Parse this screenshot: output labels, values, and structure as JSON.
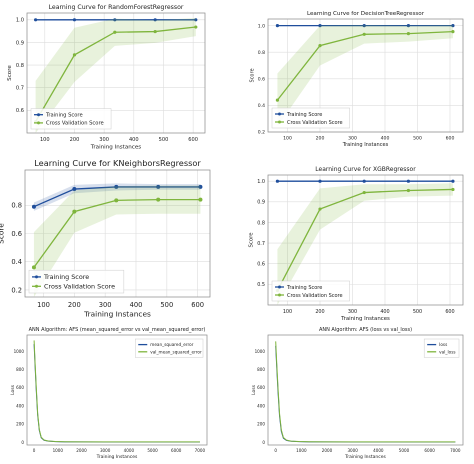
{
  "chart_data": [
    {
      "type": "line",
      "title": "Learning Curve for RandomForestRegressor",
      "xlabel": "Training Instances",
      "ylabel": "Score",
      "x": [
        69,
        200,
        336,
        472,
        609
      ],
      "xticks": [
        100,
        200,
        300,
        400,
        500,
        600
      ],
      "xlim": [
        40,
        640
      ],
      "ylim": [
        0.5,
        1.03
      ],
      "yticks": [
        0.6,
        0.7,
        0.8,
        0.9,
        1.0
      ],
      "ytick_labels": [
        "0.6",
        "0.7",
        "0.8",
        "0.9",
        "1.0"
      ],
      "grid": true,
      "legend_position": "lower-right",
      "series": [
        {
          "name": "Training Score",
          "color": "#1f4e9c",
          "values": [
            1.0,
            1.0,
            1.0,
            1.0,
            1.0
          ],
          "band": [
            0.003,
            0.003,
            0.003,
            0.003,
            0.003
          ]
        },
        {
          "name": "Cross Validation Score",
          "color": "#7fb53d",
          "values": [
            0.55,
            0.845,
            0.945,
            0.948,
            0.968
          ],
          "band": [
            0.18,
            0.12,
            0.06,
            0.05,
            0.04
          ]
        }
      ]
    },
    {
      "type": "line",
      "title": "Learning Curve for DecisionTreeRegressor",
      "xlabel": "Training Instances",
      "ylabel": "Score",
      "x": [
        69,
        200,
        336,
        472,
        609
      ],
      "xticks": [
        100,
        200,
        300,
        400,
        500,
        600
      ],
      "xlim": [
        40,
        640
      ],
      "ylim": [
        0.2,
        1.05
      ],
      "yticks": [
        0.2,
        0.4,
        0.6,
        0.8,
        1.0
      ],
      "ytick_labels": [
        "0.2",
        "0.4",
        "0.6",
        "0.8",
        "1.0"
      ],
      "grid": true,
      "legend_position": "lower-right",
      "series": [
        {
          "name": "Training Score",
          "color": "#1f4e9c",
          "values": [
            1.0,
            1.0,
            1.0,
            1.0,
            1.0
          ],
          "band": [
            0.004,
            0.004,
            0.004,
            0.004,
            0.004
          ]
        },
        {
          "name": "Cross Validation Score",
          "color": "#7fb53d",
          "values": [
            0.44,
            0.85,
            0.935,
            0.94,
            0.955
          ],
          "band": [
            0.2,
            0.15,
            0.07,
            0.06,
            0.05
          ]
        }
      ]
    },
    {
      "type": "line",
      "title": "Learning Curve for KNeighborsRegressor",
      "xlabel": "Training Instances",
      "ylabel": "Score",
      "x": [
        69,
        200,
        336,
        472,
        609
      ],
      "xticks": [
        100,
        200,
        300,
        400,
        500,
        600
      ],
      "xlim": [
        40,
        640
      ],
      "ylim": [
        0.15,
        1.05
      ],
      "yticks": [
        0.2,
        0.4,
        0.6,
        0.8
      ],
      "ytick_labels": [
        "0.2",
        "0.4",
        "0.6",
        "0.8"
      ],
      "grid": true,
      "legend_position": "lower-right",
      "series": [
        {
          "name": "Training Score",
          "color": "#1f4e9c",
          "values": [
            0.79,
            0.915,
            0.93,
            0.93,
            0.93
          ],
          "band": [
            0.03,
            0.03,
            0.025,
            0.02,
            0.02
          ]
        },
        {
          "name": "Cross Validation Score",
          "color": "#7fb53d",
          "values": [
            0.36,
            0.755,
            0.835,
            0.84,
            0.84
          ],
          "band": [
            0.25,
            0.15,
            0.1,
            0.1,
            0.1
          ]
        }
      ]
    },
    {
      "type": "line",
      "title": "Learning Curve for XGBRegressor",
      "xlabel": "Training Instances",
      "ylabel": "Score",
      "x": [
        69,
        200,
        336,
        472,
        609
      ],
      "xticks": [
        100,
        200,
        300,
        400,
        500,
        600
      ],
      "xlim": [
        40,
        640
      ],
      "ylim": [
        0.4,
        1.03
      ],
      "yticks": [
        0.5,
        0.6,
        0.7,
        0.8,
        0.9,
        1.0
      ],
      "ytick_labels": [
        "0.5",
        "0.6",
        "0.7",
        "0.8",
        "0.9",
        "1.0"
      ],
      "grid": true,
      "legend_position": "lower-right",
      "series": [
        {
          "name": "Training Score",
          "color": "#1f4e9c",
          "values": [
            1.0,
            1.0,
            1.0,
            1.0,
            1.0
          ],
          "band": [
            0.003,
            0.003,
            0.003,
            0.003,
            0.003
          ]
        },
        {
          "name": "Cross Validation Score",
          "color": "#7fb53d",
          "values": [
            0.47,
            0.865,
            0.945,
            0.955,
            0.96
          ],
          "band": [
            0.2,
            0.1,
            0.04,
            0.03,
            0.03
          ]
        }
      ]
    },
    {
      "type": "line",
      "title": "ANN Algorithm: AFS (mean_squared_error vs val_mean_squared_error)",
      "xlabel": "Training Instances",
      "ylabel": "Loss",
      "xlim": [
        -300,
        7300
      ],
      "ylim": [
        -30,
        1180
      ],
      "xticks": [
        0,
        1000,
        2000,
        3000,
        4000,
        5000,
        6000,
        7000
      ],
      "xtick_labels": [
        "0",
        "1000",
        "2000",
        "3000",
        "4000",
        "5000",
        "6000",
        "7000"
      ],
      "yticks": [
        0,
        200,
        400,
        600,
        800,
        1000
      ],
      "ytick_labels": [
        "0",
        "200",
        "400",
        "600",
        "800",
        "1000"
      ],
      "grid": false,
      "legend_position": "top-right",
      "series": [
        {
          "name": "mean_squared_error",
          "color": "#1f4e9c",
          "x": [
            0,
            40,
            90,
            150,
            220,
            300,
            420,
            600,
            900,
            1300,
            2000,
            3000,
            4500,
            7000
          ],
          "values": [
            1080,
            850,
            580,
            300,
            130,
            50,
            22,
            12,
            7,
            5,
            4,
            3,
            3,
            3
          ]
        },
        {
          "name": "val_mean_squared_error",
          "color": "#7fb53d",
          "x": [
            0,
            40,
            90,
            150,
            220,
            300,
            420,
            600,
            900,
            1300,
            2000,
            3000,
            4500,
            7000
          ],
          "values": [
            1120,
            880,
            610,
            320,
            140,
            55,
            25,
            14,
            8,
            6,
            5,
            4,
            4,
            4
          ]
        }
      ]
    },
    {
      "type": "line",
      "title": "ANN Algorithm: AFS (loss vs val_loss)",
      "xlabel": "Training Instances",
      "ylabel": "Loss",
      "xlim": [
        -300,
        7300
      ],
      "ylim": [
        -30,
        1180
      ],
      "xticks": [
        0,
        1000,
        2000,
        3000,
        4000,
        5000,
        6000,
        7000
      ],
      "xtick_labels": [
        "0",
        "1000",
        "2000",
        "3000",
        "4000",
        "5000",
        "6000",
        "7000"
      ],
      "yticks": [
        0,
        200,
        400,
        600,
        800,
        1000
      ],
      "ytick_labels": [
        "0",
        "200",
        "400",
        "600",
        "800",
        "1000"
      ],
      "grid": false,
      "legend_position": "top-right",
      "series": [
        {
          "name": "loss",
          "color": "#1f4e9c",
          "x": [
            0,
            40,
            90,
            150,
            220,
            300,
            420,
            600,
            900,
            1300,
            2000,
            3000,
            4500,
            7000
          ],
          "values": [
            1060,
            830,
            560,
            290,
            120,
            45,
            20,
            11,
            7,
            5,
            4,
            3,
            3,
            3
          ]
        },
        {
          "name": "val_loss",
          "color": "#7fb53d",
          "x": [
            0,
            40,
            90,
            150,
            220,
            300,
            420,
            600,
            900,
            1300,
            2000,
            3000,
            4500,
            7000
          ],
          "values": [
            1110,
            870,
            600,
            315,
            135,
            52,
            24,
            13,
            8,
            6,
            5,
            4,
            4,
            4
          ]
        }
      ]
    }
  ]
}
